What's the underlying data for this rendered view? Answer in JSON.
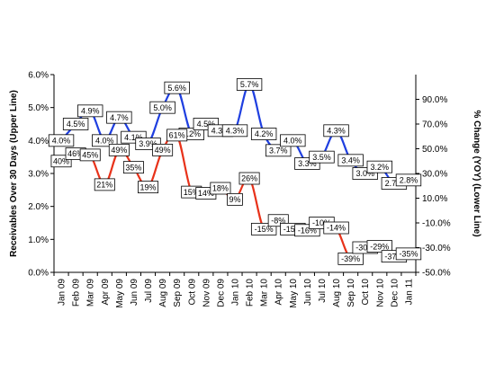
{
  "chart_data": {
    "type": "line",
    "categories": [
      "Jan 09",
      "Feb 09",
      "Mar 09",
      "Apr 09",
      "May 09",
      "Jun 09",
      "Jul 09",
      "Aug 09",
      "Sep 09",
      "Oct 09",
      "Nov 09",
      "Dec 09",
      "Jan 10",
      "Feb 10",
      "Mar 10",
      "Apr 10",
      "May 10",
      "Jun 10",
      "Jul 10",
      "Aug 10",
      "Sep 10",
      "Oct 10",
      "Nov 10",
      "Dec 10",
      "Jan 11"
    ],
    "left_axis": {
      "label": "Receivables Over 30 Days (Upper Line)",
      "ylim": [
        0,
        6
      ],
      "ticks": [
        "0.0%",
        "1.0%",
        "2.0%",
        "3.0%",
        "4.0%",
        "5.0%",
        "6.0%"
      ]
    },
    "right_axis": {
      "label": "% Change (YOY) (Lower Line)",
      "ylim": [
        -50,
        110
      ],
      "ticks": [
        "-50.0%",
        "-30.0%",
        "-10.0%",
        "10.0%",
        "30.0%",
        "50.0%",
        "70.0%",
        "90.0%"
      ]
    },
    "series": [
      {
        "axis": "left",
        "color": "#1f3fe0",
        "values": [
          4.0,
          4.5,
          4.9,
          4.0,
          4.7,
          4.1,
          3.9,
          5.0,
          5.6,
          4.2,
          4.5,
          4.3,
          4.3,
          5.7,
          4.2,
          3.7,
          4.0,
          3.3,
          3.5,
          4.3,
          3.4,
          3.0,
          3.2,
          2.7,
          2.8
        ],
        "labels": [
          "4.0%",
          "4.5%",
          "4.9%",
          "4.0%",
          "4.7%",
          "4.1%",
          "3.9%",
          "5.0%",
          "5.6%",
          "4.2%",
          "4.5%",
          "4.3%",
          "4.3%",
          "5.7%",
          "4.2%",
          "3.7%",
          "4.0%",
          "3.3%",
          "3.5%",
          "4.3%",
          "3.4%",
          "3.0%",
          "3.2%",
          "2.7%",
          "2.8%"
        ]
      },
      {
        "axis": "right",
        "color": "#e8321a",
        "values": [
          40,
          46,
          45,
          21,
          49,
          35,
          19,
          49,
          61,
          15,
          14,
          18,
          9,
          26,
          -15,
          -8,
          -15,
          -16,
          -10,
          -14,
          -39,
          -30,
          -29,
          -37,
          -35
        ],
        "labels": [
          "40%",
          "46%",
          "45%",
          "21%",
          "49%",
          "35%",
          "19%",
          "49%",
          "61%",
          "15%",
          "14%",
          "18%",
          "9%",
          "26%",
          "-15%",
          "-8%",
          "-15%",
          "-16%",
          "-10%",
          "-14%",
          "-39%",
          "-30%",
          "-29%",
          "-37%",
          "-35%"
        ]
      }
    ]
  }
}
